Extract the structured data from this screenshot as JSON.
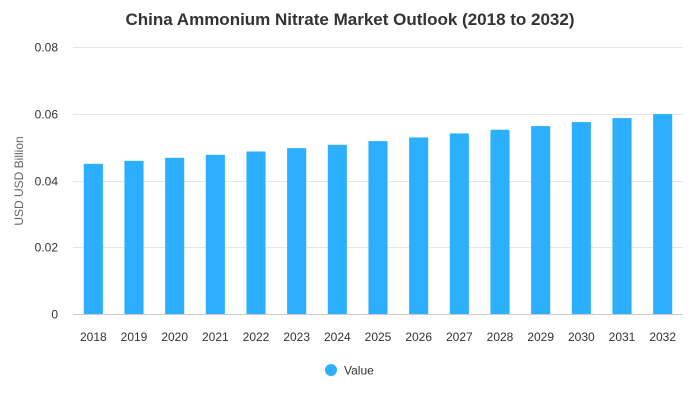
{
  "chart_data": {
    "type": "bar",
    "title": "China Ammonium Nitrate Market Outlook (2018 to 2032)",
    "xlabel": "",
    "ylabel": "USD USD Billion",
    "categories": [
      "2018",
      "2019",
      "2020",
      "2021",
      "2022",
      "2023",
      "2024",
      "2025",
      "2026",
      "2027",
      "2028",
      "2029",
      "2030",
      "2031",
      "2032"
    ],
    "series": [
      {
        "name": "Value",
        "color": "#2caffe",
        "values": [
          0.045,
          0.0459,
          0.0468,
          0.0477,
          0.0487,
          0.0497,
          0.0507,
          0.0518,
          0.0529,
          0.0541,
          0.0552,
          0.0563,
          0.0575,
          0.0587,
          0.0599
        ]
      }
    ],
    "ylim": [
      0,
      0.08
    ],
    "yticks": [
      0,
      0.02,
      0.04,
      0.06,
      0.08
    ],
    "ytick_labels": [
      "0",
      "0.02",
      "0.04",
      "0.06",
      "0.08"
    ],
    "grid": true,
    "legend_position": "bottom-center"
  }
}
